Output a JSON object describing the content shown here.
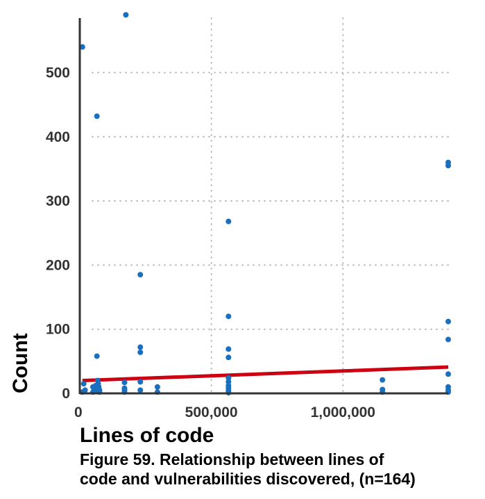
{
  "chart_data": {
    "type": "scatter",
    "xlabel": "Lines of code",
    "ylabel": "Count",
    "xlim": [
      0,
      1400000
    ],
    "ylim": [
      0,
      585
    ],
    "x_ticks": [
      0,
      500000,
      1000000
    ],
    "x_tick_labels": [
      "0",
      "500,000",
      "1,000,000"
    ],
    "y_ticks": [
      0,
      100,
      200,
      300,
      400,
      500
    ],
    "y_tick_labels": [
      "0",
      "100",
      "200",
      "300",
      "400",
      "500"
    ],
    "grid": "dotted",
    "legend": "none",
    "colors": {
      "points": "#1a6fbf",
      "trend": "#cc0011",
      "axis": "#333333",
      "grid": "#bbbbbb"
    },
    "series": [
      {
        "x": [
          10000,
          10000,
          15000,
          20000,
          50000,
          50000,
          55000,
          60000,
          60000,
          65000,
          65000,
          68000,
          70000,
          70000,
          70000,
          72000,
          75000,
          75000,
          170000,
          170000,
          170000,
          170000,
          175000,
          230000,
          230000,
          230000,
          230000,
          230000,
          295000,
          295000,
          565000,
          565000,
          565000,
          565000,
          565000,
          565000,
          565000,
          565000,
          565000,
          565000,
          1150000,
          1150000,
          1150000,
          1400000,
          1400000,
          1400000,
          1400000,
          1400000,
          1400000,
          1400000,
          1400000
        ],
        "y": [
          540,
          2,
          15,
          5,
          10,
          2,
          5,
          8,
          12,
          432,
          58,
          20,
          3,
          7,
          15,
          10,
          2,
          5,
          17,
          5,
          2,
          8,
          590,
          185,
          72,
          64,
          18,
          5,
          10,
          2,
          268,
          120,
          69,
          56,
          24,
          18,
          12,
          8,
          4,
          1,
          21,
          6,
          2,
          360,
          355,
          112,
          84,
          30,
          10,
          5,
          2
        ]
      }
    ],
    "trendline": {
      "x": [
        10000,
        1400000
      ],
      "y": [
        20,
        41
      ]
    }
  },
  "caption": {
    "line1": "Figure 59.  Relationship between lines of",
    "line2": "code and vulnerabilities discovered, (n=164)"
  }
}
